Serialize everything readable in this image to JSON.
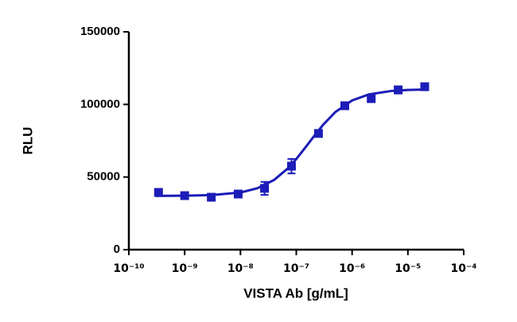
{
  "chart_data": {
    "type": "scatter",
    "xlabel": "VISTA Ab [g/mL]",
    "ylabel": "RLU",
    "xscale": "log",
    "xlim": [
      1e-10,
      0.0001
    ],
    "xticks": [
      {
        "value": 1e-10,
        "label": "10⁻¹⁰"
      },
      {
        "value": 1e-09,
        "label": "10⁻⁹"
      },
      {
        "value": 1e-08,
        "label": "10⁻⁸"
      },
      {
        "value": 1e-07,
        "label": "10⁻⁷"
      },
      {
        "value": 1e-06,
        "label": "10⁻⁶"
      },
      {
        "value": 1e-05,
        "label": "10⁻⁵"
      },
      {
        "value": 0.0001,
        "label": "10⁻⁴"
      }
    ],
    "ylim": [
      0,
      150000
    ],
    "yticks": [
      0,
      50000,
      100000,
      150000
    ],
    "x": [
      3.4e-10,
      1e-09,
      3e-09,
      9.1e-09,
      2.7e-08,
      8.2e-08,
      2.5e-07,
      7.4e-07,
      2.2e-06,
      6.7e-06,
      2e-05
    ],
    "series": [
      {
        "color": "#1c1cb8",
        "values": [
          39400,
          37200,
          36100,
          38300,
          42200,
          57500,
          80000,
          99100,
          104000,
          110000,
          112200
        ],
        "errors": [
          1500,
          1200,
          1200,
          1500,
          4500,
          5000,
          2000,
          1500,
          1500,
          2500,
          1500
        ]
      }
    ],
    "fit": {
      "color": "#1c1cb8",
      "x": [
        3e-10,
        1e-09,
        3e-09,
        1e-08,
        2e-08,
        4e-08,
        7e-08,
        1e-07,
        1.5e-07,
        2e-07,
        3e-07,
        5e-07,
        1e-06,
        2e-06,
        5e-06,
        1e-05,
        2e-05
      ],
      "values": [
        37036,
        37154,
        37575,
        39370,
        42250,
        48000,
        55800,
        62400,
        71000,
        77300,
        85800,
        94700,
        102700,
        106900,
        109250,
        109960,
        110260
      ]
    }
  }
}
